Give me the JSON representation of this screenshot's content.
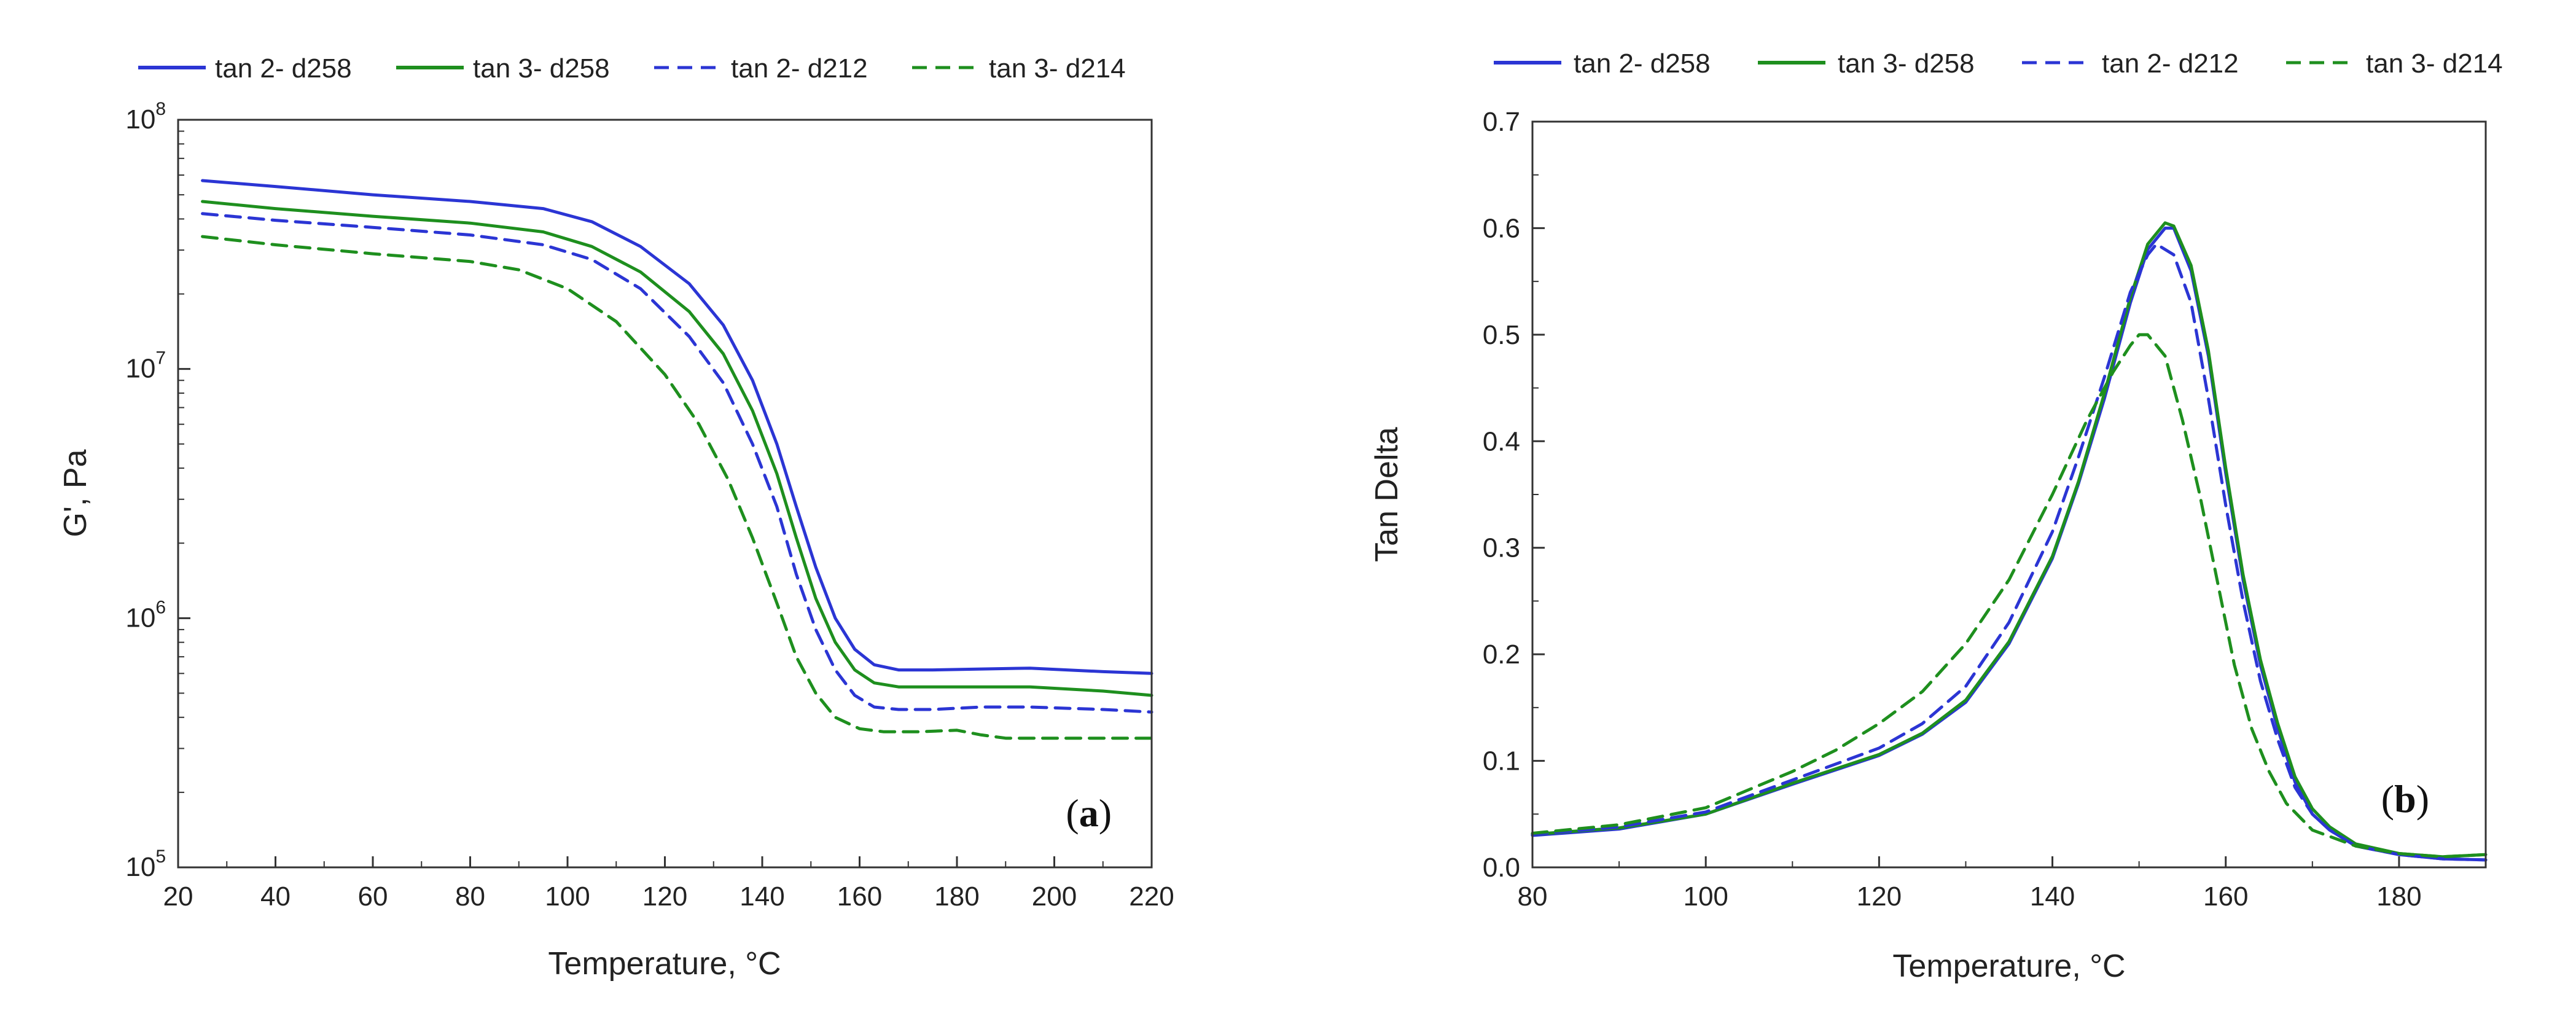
{
  "chart_data": [
    {
      "type": "line",
      "panel_label": "a",
      "panel_label_parts": [
        "(",
        "a",
        ")"
      ],
      "xlabel": "Temperature, °C",
      "ylabel": "G', Pa",
      "xlim": [
        20,
        220
      ],
      "ylim": [
        100000,
        100000000
      ],
      "yscale": "log",
      "xticks": [
        20,
        40,
        60,
        80,
        100,
        120,
        140,
        160,
        180,
        200,
        220
      ],
      "yticks": [
        {
          "value": 100000,
          "base": "10",
          "exp": "5"
        },
        {
          "value": 1000000,
          "base": "10",
          "exp": "6"
        },
        {
          "value": 10000000,
          "base": "10",
          "exp": "7"
        },
        {
          "value": 100000000,
          "base": "10",
          "exp": "8"
        }
      ],
      "legend_position": "top",
      "series": [
        {
          "name": "tan 2- d258",
          "color": "#2b35d4",
          "dash": "solid",
          "x": [
            25,
            40,
            60,
            80,
            95,
            105,
            115,
            125,
            132,
            138,
            143,
            147,
            151,
            155,
            159,
            163,
            168,
            175,
            185,
            195,
            210,
            220
          ],
          "y": [
            57000000,
            54000000,
            50000000,
            47000000,
            44000000,
            39000000,
            31000000,
            22000000,
            15000000,
            9000000,
            5000000,
            2800000,
            1600000,
            1000000,
            750000,
            650000,
            620000,
            620000,
            625000,
            630000,
            610000,
            600000
          ]
        },
        {
          "name": "tan 3- d258",
          "color": "#1e8f1e",
          "dash": "solid",
          "x": [
            25,
            40,
            60,
            80,
            95,
            105,
            115,
            125,
            132,
            138,
            143,
            147,
            151,
            155,
            159,
            163,
            168,
            175,
            185,
            195,
            210,
            220
          ],
          "y": [
            47000000,
            44000000,
            41000000,
            38500000,
            35500000,
            31000000,
            24500000,
            17000000,
            11500000,
            6800000,
            3800000,
            2100000,
            1200000,
            800000,
            620000,
            550000,
            530000,
            530000,
            530000,
            530000,
            510000,
            490000
          ]
        },
        {
          "name": "tan 2- d212",
          "color": "#2b35d4",
          "dash": "dashed",
          "x": [
            25,
            40,
            60,
            80,
            95,
            105,
            115,
            125,
            132,
            138,
            143,
            147,
            151,
            155,
            159,
            163,
            168,
            175,
            185,
            195,
            210,
            220
          ],
          "y": [
            42000000,
            39500000,
            37000000,
            34500000,
            31500000,
            27500000,
            21000000,
            13500000,
            8800000,
            5000000,
            2800000,
            1500000,
            900000,
            620000,
            490000,
            440000,
            430000,
            430000,
            440000,
            440000,
            430000,
            420000
          ]
        },
        {
          "name": "tan 3- d214",
          "color": "#1e8f1e",
          "dash": "dashed",
          "x": [
            25,
            40,
            60,
            80,
            90,
            100,
            110,
            120,
            127,
            133,
            138,
            143,
            147,
            151,
            155,
            160,
            165,
            172,
            180,
            185,
            190,
            200,
            220
          ],
          "y": [
            34000000,
            31500000,
            29000000,
            27000000,
            25000000,
            21000000,
            15500000,
            9500000,
            6000000,
            3600000,
            2100000,
            1150000,
            700000,
            500000,
            400000,
            360000,
            350000,
            350000,
            355000,
            340000,
            330000,
            330000,
            330000
          ]
        }
      ]
    },
    {
      "type": "line",
      "panel_label": "b",
      "panel_label_parts": [
        "(",
        "b",
        ")"
      ],
      "xlabel": "Temperature, °C",
      "ylabel": "Tan Delta",
      "xlim": [
        80,
        190
      ],
      "ylim": [
        0.0,
        0.7
      ],
      "xticks": [
        "80",
        "100",
        "120",
        "140",
        "160",
        "180"
      ],
      "yticks": [
        "0.0",
        "0.1",
        "0.2",
        "0.3",
        "0.4",
        "0.5",
        "0.6",
        "0.7"
      ],
      "legend_position": "top",
      "series": [
        {
          "name": "tan 2- d258",
          "color": "#2b35d4",
          "dash": "solid",
          "x": [
            80,
            90,
            100,
            110,
            120,
            125,
            130,
            135,
            140,
            143,
            146,
            149,
            151,
            153,
            154,
            156,
            158,
            160,
            162,
            164,
            166,
            168,
            170,
            172,
            175,
            180,
            185,
            190
          ],
          "y": [
            0.03,
            0.036,
            0.05,
            0.078,
            0.105,
            0.125,
            0.155,
            0.21,
            0.29,
            0.36,
            0.44,
            0.53,
            0.58,
            0.6,
            0.6,
            0.56,
            0.48,
            0.37,
            0.27,
            0.19,
            0.13,
            0.08,
            0.05,
            0.035,
            0.02,
            0.012,
            0.008,
            0.007
          ]
        },
        {
          "name": "tan 3- d258",
          "color": "#1e8f1e",
          "dash": "solid",
          "x": [
            80,
            90,
            100,
            110,
            120,
            125,
            130,
            135,
            140,
            143,
            146,
            149,
            151,
            153,
            154,
            156,
            158,
            160,
            162,
            164,
            166,
            168,
            170,
            172,
            175,
            180,
            185,
            190
          ],
          "y": [
            0.031,
            0.037,
            0.05,
            0.079,
            0.106,
            0.126,
            0.157,
            0.212,
            0.292,
            0.362,
            0.445,
            0.535,
            0.585,
            0.605,
            0.602,
            0.565,
            0.485,
            0.375,
            0.275,
            0.195,
            0.135,
            0.085,
            0.055,
            0.038,
            0.022,
            0.013,
            0.01,
            0.012
          ]
        },
        {
          "name": "tan 2- d212",
          "color": "#2b35d4",
          "dash": "dashed",
          "x": [
            80,
            90,
            100,
            110,
            120,
            125,
            130,
            135,
            140,
            143,
            146,
            149,
            151,
            152,
            154,
            156,
            158,
            160,
            162,
            164,
            166,
            168,
            170,
            172,
            175,
            180,
            185,
            190
          ],
          "y": [
            0.031,
            0.038,
            0.052,
            0.082,
            0.112,
            0.135,
            0.17,
            0.23,
            0.315,
            0.385,
            0.46,
            0.54,
            0.575,
            0.585,
            0.575,
            0.53,
            0.44,
            0.34,
            0.25,
            0.175,
            0.12,
            0.075,
            0.05,
            0.035,
            0.02,
            0.012,
            0.008,
            0.007
          ]
        },
        {
          "name": "tan 3- d214",
          "color": "#1e8f1e",
          "dash": "dashed",
          "x": [
            80,
            90,
            100,
            110,
            115,
            120,
            125,
            130,
            135,
            140,
            144,
            147,
            149,
            150,
            151,
            153,
            155,
            157,
            159,
            161,
            163,
            165,
            167,
            170,
            175,
            180,
            185,
            190
          ],
          "y": [
            0.032,
            0.04,
            0.056,
            0.09,
            0.11,
            0.135,
            0.165,
            0.21,
            0.27,
            0.35,
            0.42,
            0.465,
            0.49,
            0.5,
            0.5,
            0.48,
            0.42,
            0.35,
            0.27,
            0.19,
            0.13,
            0.09,
            0.06,
            0.035,
            0.02,
            0.013,
            0.01,
            0.012
          ]
        }
      ]
    }
  ]
}
